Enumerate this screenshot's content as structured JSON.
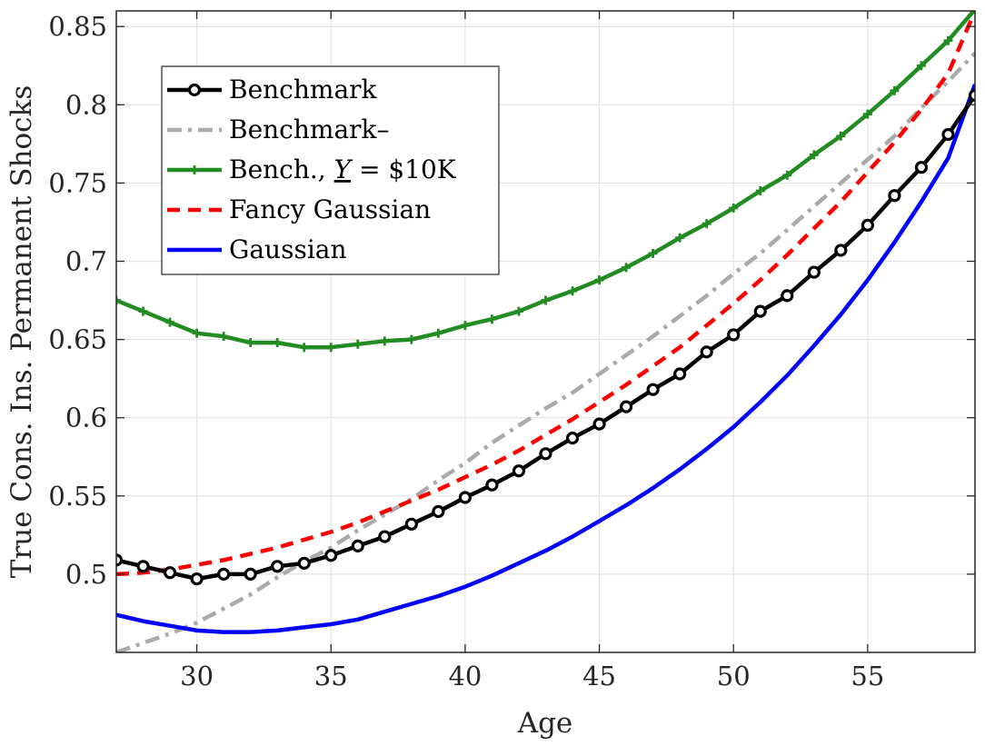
{
  "chart_data": {
    "type": "line",
    "title": "",
    "xlabel": "Age",
    "ylabel": "True Cons. Ins. Permanent Shocks",
    "xlim": [
      27,
      59
    ],
    "ylim": [
      0.45,
      0.86
    ],
    "xticks": [
      30,
      35,
      40,
      45,
      50,
      55
    ],
    "xtick_labels": [
      "30",
      "35",
      "40",
      "45",
      "50",
      "55"
    ],
    "yticks": [
      0.5,
      0.55,
      0.6,
      0.65,
      0.7,
      0.75,
      0.8,
      0.85
    ],
    "ytick_labels": [
      "0.5",
      "0.55",
      "0.6",
      "0.65",
      "0.7",
      "0.75",
      "0.8",
      "0.85"
    ],
    "grid": true,
    "legend_position": "top-left",
    "x": [
      27,
      28,
      29,
      30,
      31,
      32,
      33,
      34,
      35,
      36,
      37,
      38,
      39,
      40,
      41,
      42,
      43,
      44,
      45,
      46,
      47,
      48,
      49,
      50,
      51,
      52,
      53,
      54,
      55,
      56,
      57,
      58,
      59
    ],
    "series": [
      {
        "name": "Benchmark",
        "color": "#000000",
        "style": "solid",
        "marker": "circle",
        "values": [
          0.509,
          0.505,
          0.501,
          0.497,
          0.5,
          0.5,
          0.505,
          0.507,
          0.512,
          0.518,
          0.524,
          0.532,
          0.54,
          0.549,
          0.557,
          0.566,
          0.577,
          0.587,
          0.596,
          0.607,
          0.618,
          0.628,
          0.642,
          0.653,
          0.668,
          0.678,
          0.693,
          0.707,
          0.723,
          0.742,
          0.76,
          0.781,
          0.806
        ]
      },
      {
        "name": "Benchmark–",
        "color": "#aaaaaa",
        "style": "dashdot",
        "marker": "none",
        "values": [
          0.45,
          0.456,
          0.462,
          0.469,
          0.478,
          0.487,
          0.498,
          0.508,
          0.517,
          0.528,
          0.538,
          0.548,
          0.56,
          0.571,
          0.584,
          0.595,
          0.606,
          0.616,
          0.628,
          0.64,
          0.652,
          0.665,
          0.678,
          0.692,
          0.705,
          0.72,
          0.735,
          0.75,
          0.765,
          0.78,
          0.798,
          0.815,
          0.833
        ]
      },
      {
        "name": "Bench., Y = $10K",
        "color": "#228b22",
        "style": "solid",
        "marker": "plus",
        "values": [
          0.675,
          0.668,
          0.661,
          0.654,
          0.652,
          0.648,
          0.648,
          0.645,
          0.645,
          0.647,
          0.649,
          0.65,
          0.654,
          0.659,
          0.663,
          0.668,
          0.675,
          0.681,
          0.688,
          0.696,
          0.705,
          0.715,
          0.724,
          0.734,
          0.745,
          0.755,
          0.768,
          0.78,
          0.794,
          0.809,
          0.825,
          0.841,
          0.861
        ]
      },
      {
        "name": "Fancy Gaussian",
        "color": "#ff0000",
        "style": "dashed",
        "marker": "none",
        "values": [
          0.5,
          0.501,
          0.503,
          0.506,
          0.509,
          0.513,
          0.517,
          0.522,
          0.527,
          0.533,
          0.54,
          0.547,
          0.554,
          0.562,
          0.57,
          0.579,
          0.589,
          0.599,
          0.61,
          0.621,
          0.633,
          0.645,
          0.659,
          0.673,
          0.688,
          0.704,
          0.721,
          0.738,
          0.757,
          0.776,
          0.797,
          0.82,
          0.86
        ]
      },
      {
        "name": "Gaussian",
        "color": "#0000ff",
        "style": "solid",
        "marker": "none",
        "values": [
          0.474,
          0.47,
          0.467,
          0.464,
          0.463,
          0.463,
          0.464,
          0.466,
          0.468,
          0.471,
          0.476,
          0.481,
          0.486,
          0.492,
          0.499,
          0.507,
          0.515,
          0.524,
          0.534,
          0.544,
          0.555,
          0.567,
          0.58,
          0.594,
          0.61,
          0.627,
          0.646,
          0.666,
          0.688,
          0.712,
          0.738,
          0.766,
          0.813
        ]
      }
    ]
  },
  "legend": {
    "items": [
      {
        "pre": "Benchmark",
        "sub": "",
        "post": ""
      },
      {
        "pre": "Benchmark–",
        "sub": "",
        "post": ""
      },
      {
        "pre": "Bench., ",
        "sub": "Y",
        "post": " = $10K"
      },
      {
        "pre": "Fancy Gaussian",
        "sub": "",
        "post": ""
      },
      {
        "pre": "Gaussian",
        "sub": "",
        "post": ""
      }
    ]
  }
}
